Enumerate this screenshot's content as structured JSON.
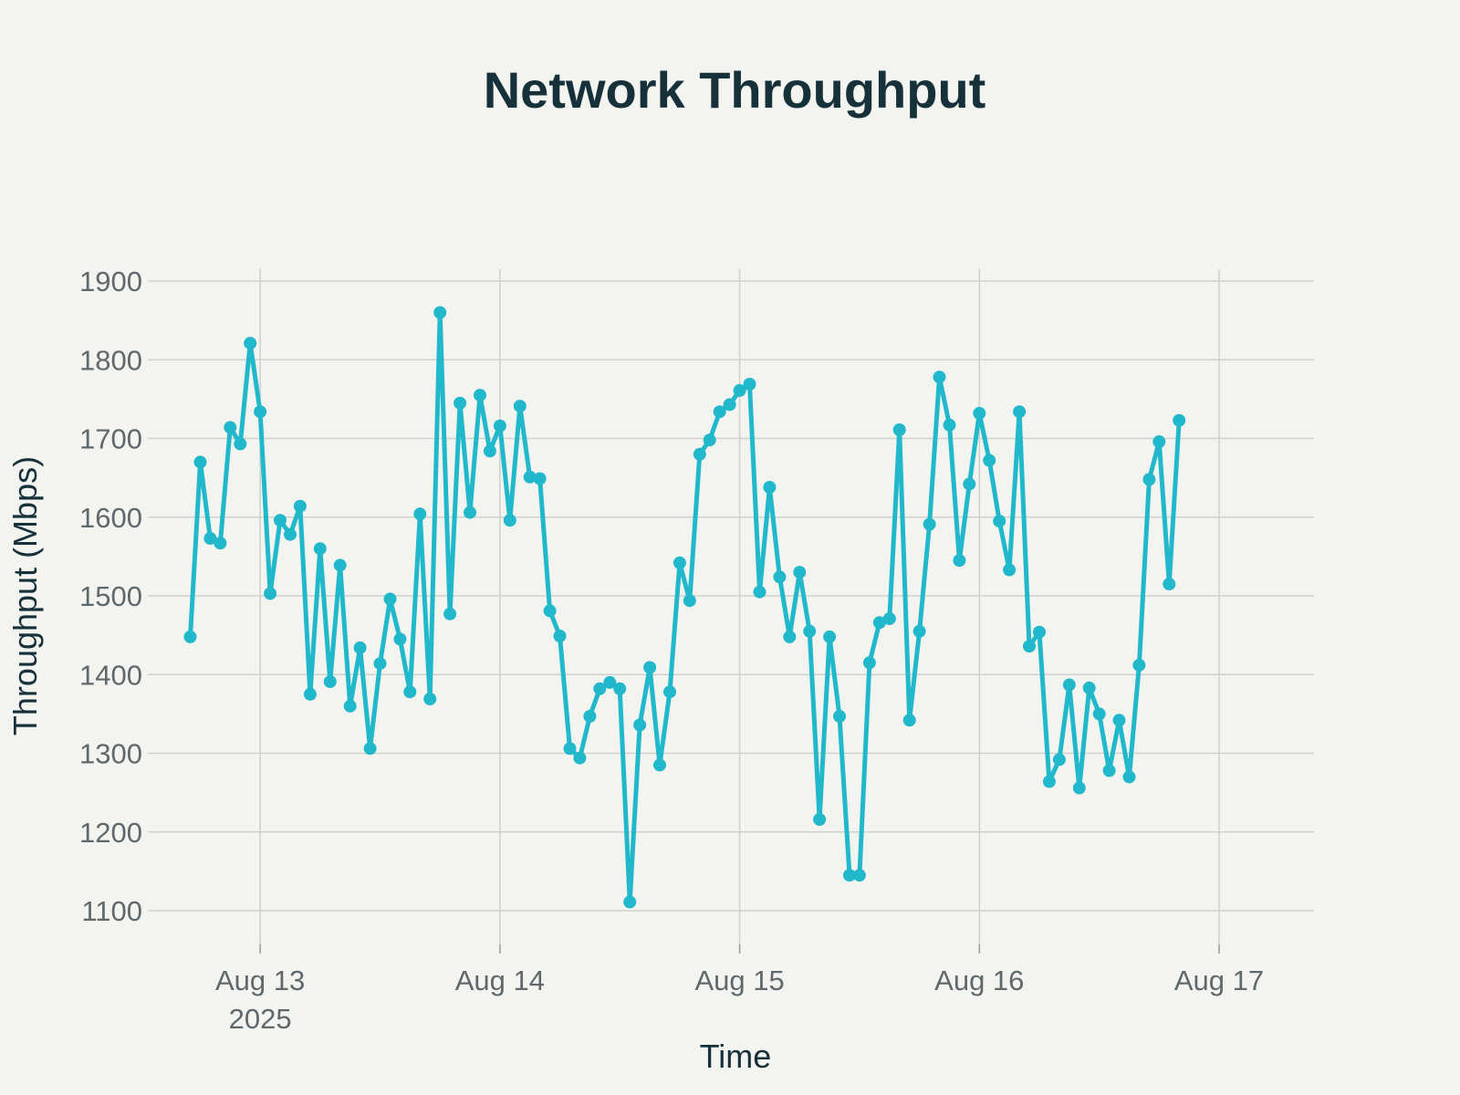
{
  "chart_data": {
    "type": "line",
    "title": "Network Throughput",
    "xlabel": "Time",
    "ylabel": "Throughput (Mbps)",
    "x_start": "2025-08-12T17:00",
    "x_step_hours": 1,
    "xlim": [
      "2025-08-12T12:45",
      "2025-08-17T09:30"
    ],
    "ylim": [
      1055,
      1915
    ],
    "yticks": [
      1100,
      1200,
      1300,
      1400,
      1500,
      1600,
      1700,
      1800,
      1900
    ],
    "xticks": [
      {
        "date": "2025-08-13",
        "label": "Aug 13",
        "sublabel": "2025"
      },
      {
        "date": "2025-08-14",
        "label": "Aug 14",
        "sublabel": ""
      },
      {
        "date": "2025-08-15",
        "label": "Aug 15",
        "sublabel": ""
      },
      {
        "date": "2025-08-16",
        "label": "Aug 16",
        "sublabel": ""
      },
      {
        "date": "2025-08-17",
        "label": "Aug 17",
        "sublabel": ""
      }
    ],
    "grid": true,
    "color": "#22b8cc",
    "series": [
      {
        "name": "",
        "values": [
          1448,
          1670,
          1573,
          1567,
          1714,
          1693,
          1821,
          1734,
          1503,
          1596,
          1578,
          1614,
          1375,
          1560,
          1391,
          1539,
          1360,
          1434,
          1306,
          1414,
          1496,
          1445,
          1378,
          1604,
          1369,
          1860,
          1477,
          1745,
          1606,
          1755,
          1684,
          1716,
          1596,
          1741,
          1651,
          1649,
          1481,
          1449,
          1306,
          1294,
          1347,
          1382,
          1390,
          1382,
          1111,
          1336,
          1409,
          1285,
          1378,
          1542,
          1494,
          1680,
          1698,
          1734,
          1743,
          1761,
          1769,
          1505,
          1638,
          1524,
          1448,
          1530,
          1455,
          1216,
          1448,
          1347,
          1145,
          1145,
          1415,
          1466,
          1471,
          1711,
          1342,
          1455,
          1591,
          1778,
          1717,
          1545,
          1642,
          1732,
          1672,
          1595,
          1533,
          1734,
          1436,
          1454,
          1264,
          1292,
          1387,
          1256,
          1383,
          1350,
          1278,
          1342,
          1270,
          1412,
          1648,
          1696,
          1515,
          1723
        ]
      }
    ]
  }
}
